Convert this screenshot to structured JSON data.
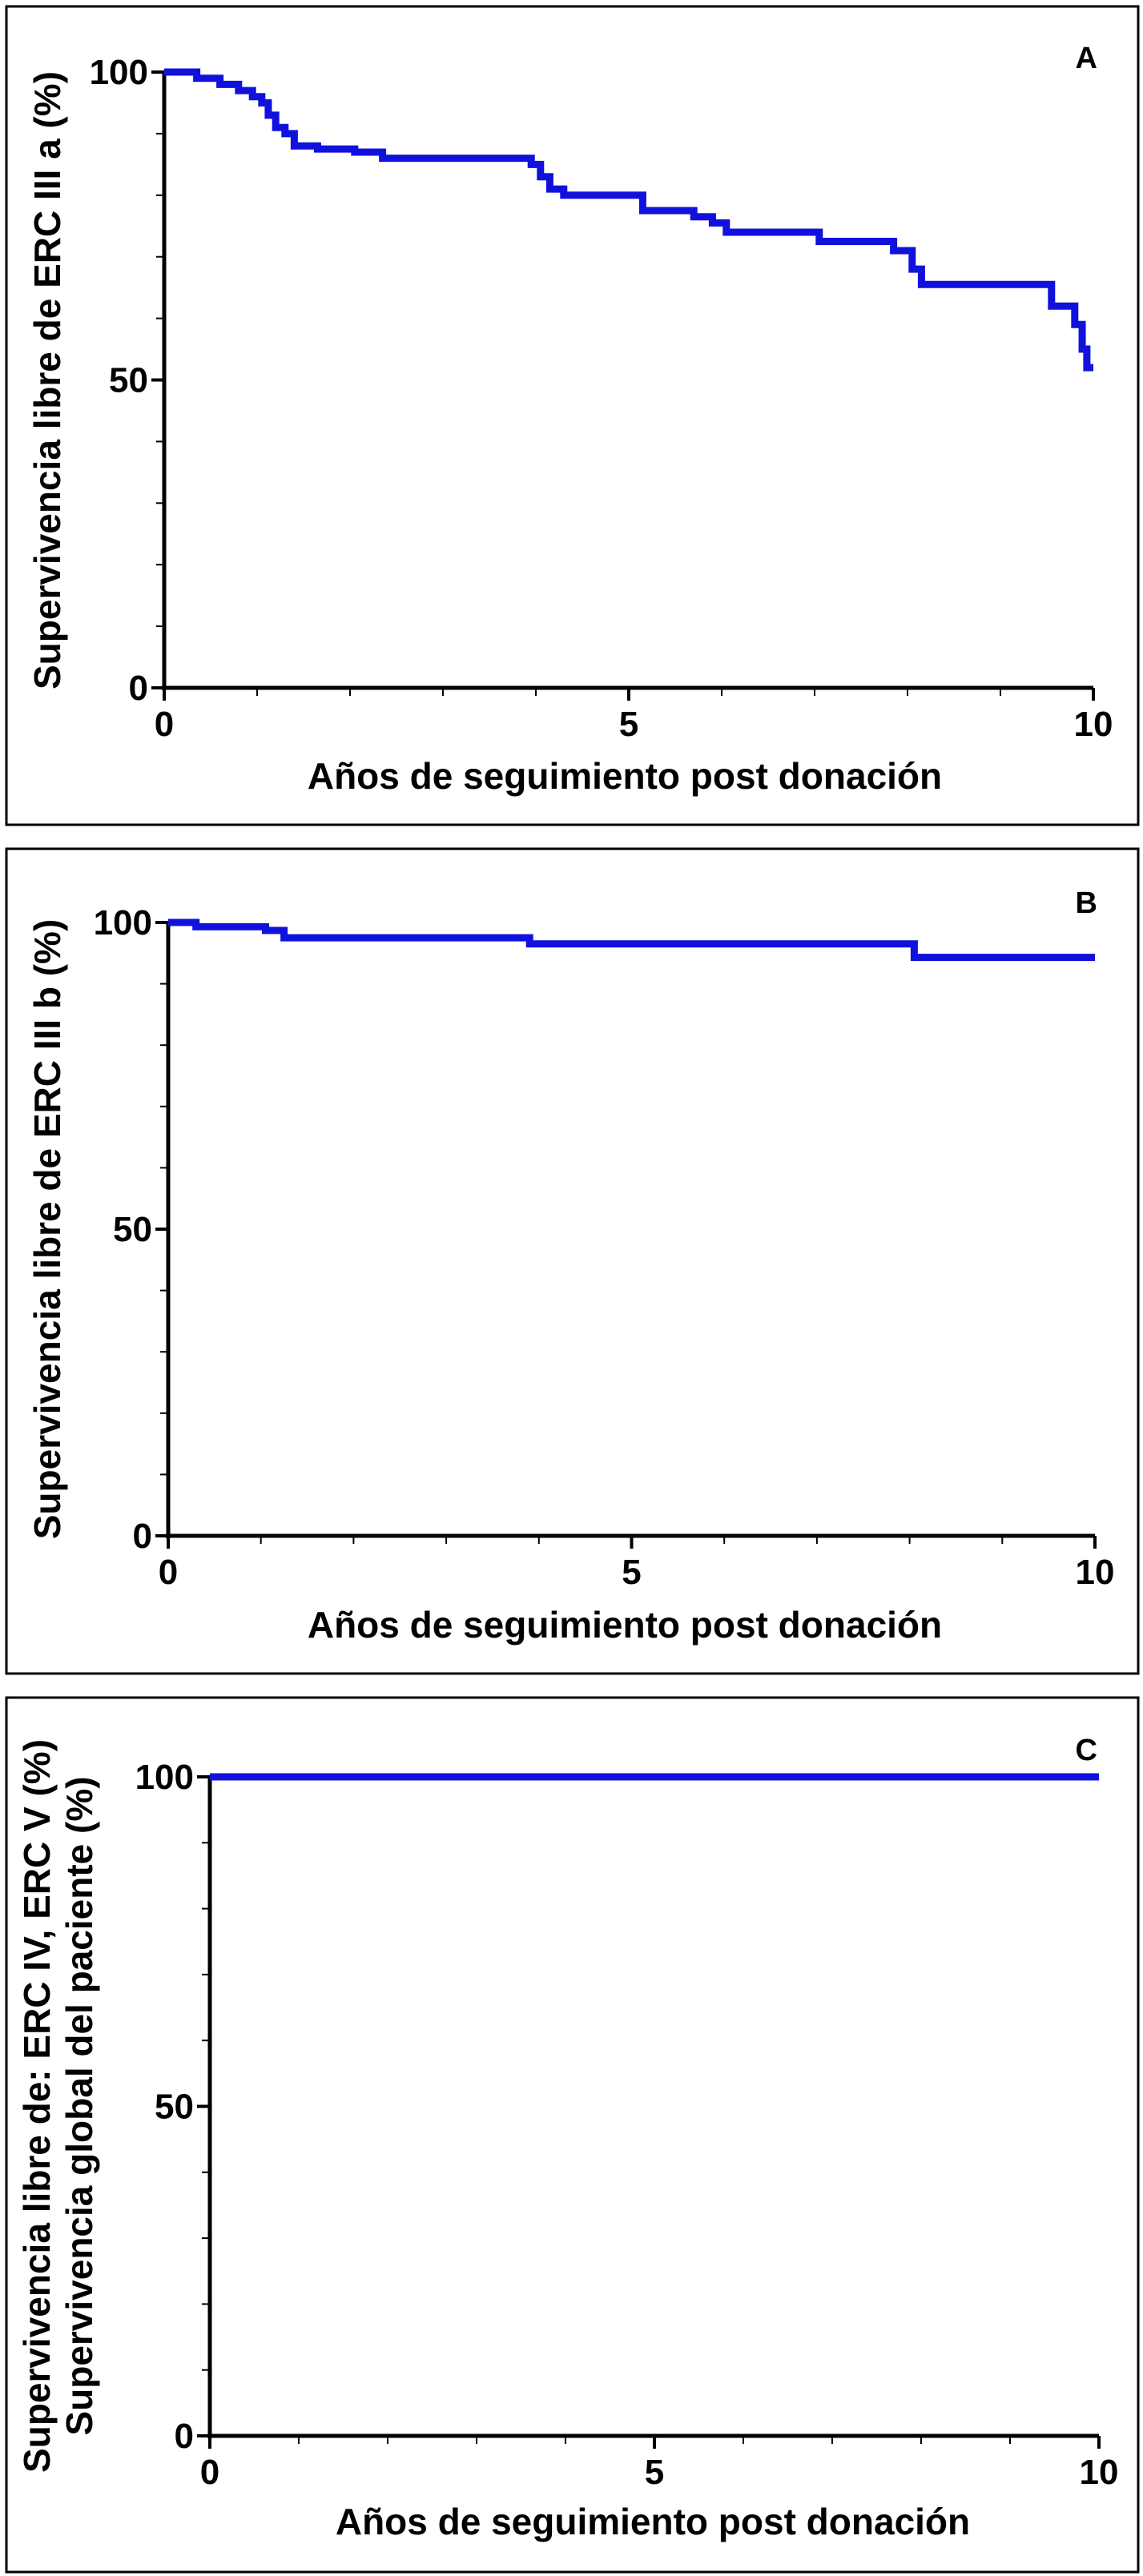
{
  "chart_data": [
    {
      "type": "line",
      "panel_label": "A",
      "xlabel": "Años de seguimiento post donación",
      "ylabel_lines": [
        "Supervivencia libre de ERC III a (%)"
      ],
      "xlim": [
        0,
        10
      ],
      "ylim": [
        0,
        100
      ],
      "x_ticks": [
        0,
        5,
        10
      ],
      "y_ticks": [
        0,
        50,
        100
      ],
      "series_color": "#1111dd",
      "step_points": [
        [
          0,
          100
        ],
        [
          0.35,
          99
        ],
        [
          0.6,
          98
        ],
        [
          0.8,
          97
        ],
        [
          0.95,
          96
        ],
        [
          1.05,
          95
        ],
        [
          1.12,
          93
        ],
        [
          1.2,
          91
        ],
        [
          1.3,
          90
        ],
        [
          1.4,
          88
        ],
        [
          1.65,
          87.5
        ],
        [
          2.05,
          87
        ],
        [
          2.35,
          86
        ],
        [
          3.95,
          85
        ],
        [
          4.05,
          83
        ],
        [
          4.15,
          81
        ],
        [
          4.3,
          80
        ],
        [
          5.15,
          77.5
        ],
        [
          5.7,
          76.5
        ],
        [
          5.9,
          75.5
        ],
        [
          6.05,
          74
        ],
        [
          7.05,
          72.5
        ],
        [
          7.85,
          71
        ],
        [
          8.05,
          68
        ],
        [
          8.15,
          65.5
        ],
        [
          9.55,
          62
        ],
        [
          9.8,
          59
        ],
        [
          9.88,
          55
        ],
        [
          9.93,
          52
        ],
        [
          10,
          52
        ]
      ]
    },
    {
      "type": "line",
      "panel_label": "B",
      "xlabel": "Años de seguimiento post donación",
      "ylabel_lines": [
        "Supervivencia libre de ERC III b (%)"
      ],
      "xlim": [
        0,
        10
      ],
      "ylim": [
        0,
        100
      ],
      "x_ticks": [
        0,
        5,
        10
      ],
      "y_ticks": [
        0,
        50,
        100
      ],
      "series_color": "#1111dd",
      "step_points": [
        [
          0,
          100
        ],
        [
          0.3,
          99.3
        ],
        [
          1.05,
          98.7
        ],
        [
          1.25,
          97.5
        ],
        [
          3.9,
          96.5
        ],
        [
          8.05,
          94.3
        ],
        [
          10,
          94.3
        ]
      ]
    },
    {
      "type": "line",
      "panel_label": "C",
      "xlabel": "Años de seguimiento post donación",
      "ylabel_lines": [
        "Supervivencia libre de: ERC IV, ERC V (%)",
        "Supervivencia global del paciente (%)"
      ],
      "xlim": [
        0,
        10
      ],
      "ylim": [
        0,
        100
      ],
      "x_ticks": [
        0,
        5,
        10
      ],
      "y_ticks": [
        0,
        50,
        100
      ],
      "series_color": "#1111dd",
      "step_points": [
        [
          0,
          100
        ],
        [
          10,
          100
        ]
      ]
    }
  ]
}
